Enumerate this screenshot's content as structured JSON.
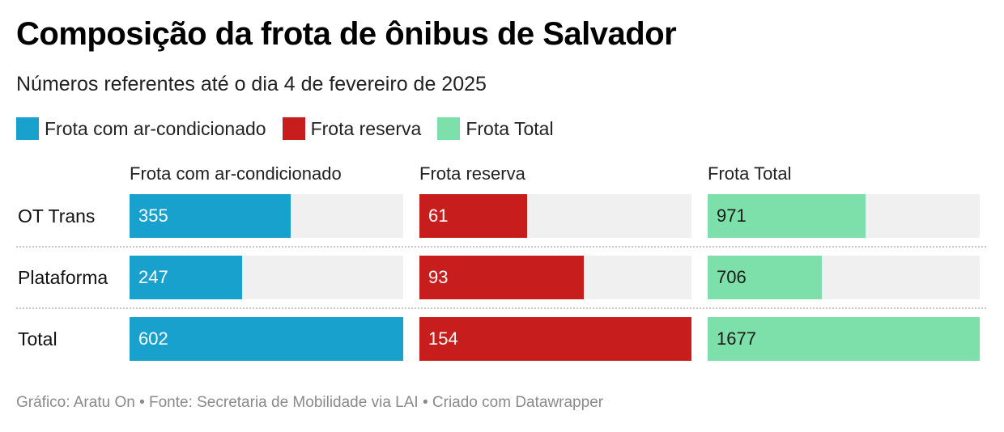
{
  "title": "Composição da frota de ônibus de Salvador",
  "subtitle": "Números referentes até o dia 4 de fevereiro de 2025",
  "legend": [
    {
      "label": "Frota com ar-condicionado",
      "color": "#18a1cd"
    },
    {
      "label": "Frota reserva",
      "color": "#c71e1d"
    },
    {
      "label": "Frota Total",
      "color": "#7ddfa9"
    }
  ],
  "footer": "Gráfico: Aratu On • Fonte: Secretaria de Mobilidade via LAI • Criado com Datawrapper",
  "chart_data": {
    "type": "bar",
    "orientation": "horizontal",
    "layout": "split-bars",
    "categories": [
      "OT Trans",
      "Plataforma",
      "Total"
    ],
    "series": [
      {
        "name": "Frota com ar-condicionado",
        "color": "#18a1cd",
        "label_color": "#ffffff",
        "values": [
          355,
          247,
          602
        ]
      },
      {
        "name": "Frota reserva",
        "color": "#c71e1d",
        "label_color": "#ffffff",
        "values": [
          61,
          93,
          154
        ]
      },
      {
        "name": "Frota Total",
        "color": "#7ddfa9",
        "label_color": "#1a1a1a",
        "values": [
          971,
          706,
          1677
        ]
      }
    ],
    "scale": "each column scaled to its own maximum (Total row)",
    "track_color": "#f0f0f0",
    "grid": false,
    "legend_position": "top-left"
  }
}
